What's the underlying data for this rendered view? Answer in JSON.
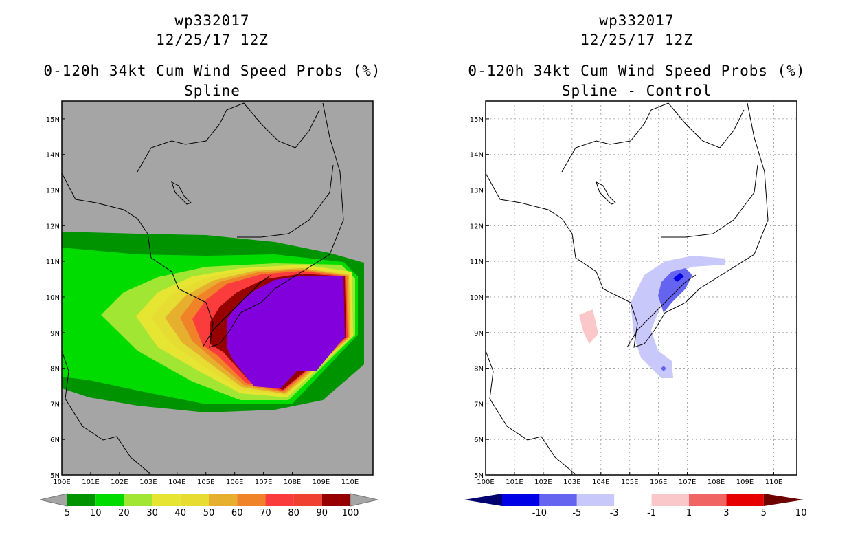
{
  "left_panel": {
    "storm_id": "wp332017",
    "datetime": "12/25/17 12Z",
    "title": "0-120h 34kt Cum Wind Speed Probs (%)",
    "subtitle": "Spline",
    "colorbar": {
      "labels": [
        "5",
        "10",
        "20",
        "30",
        "40",
        "50",
        "60",
        "70",
        "80",
        "90",
        "100"
      ],
      "colors": [
        "#009300",
        "#00dc00",
        "#a0e632",
        "#e6e632",
        "#e6dc32",
        "#e6af2d",
        "#f08228",
        "#fa3c3c",
        "#f04030",
        "#960000",
        "#8200dc"
      ]
    }
  },
  "right_panel": {
    "storm_id": "wp332017",
    "datetime": "12/25/17 12Z",
    "title": "0-120h 34kt Cum Wind Speed Probs (%)",
    "subtitle": "Spline - Control",
    "colorbar": {
      "labels": [
        "-10",
        "-5",
        "-3",
        "-1",
        "1",
        "3",
        "5",
        "10"
      ],
      "colors": [
        "#00006e",
        "#0000e6",
        "#6464f0",
        "#c8c8fa",
        "#ffffff",
        "#fac8c8",
        "#f06464",
        "#e60000",
        "#6e0000"
      ]
    }
  },
  "axes": {
    "lon_labels": [
      "100E",
      "101E",
      "102E",
      "103E",
      "104E",
      "105E",
      "106E",
      "107E",
      "108E",
      "109E",
      "110E"
    ],
    "lat_labels": [
      "5N",
      "6N",
      "7N",
      "8N",
      "9N",
      "10N",
      "11N",
      "12N",
      "13N",
      "14N",
      "15N"
    ],
    "lon_range": [
      100,
      110.8
    ],
    "lat_range": [
      5,
      15.5
    ]
  },
  "chart_data": [
    {
      "type": "heatmap",
      "title": "0-120h 34kt Cum Wind Speed Probs (%)",
      "subtitle": "Spline",
      "field": "cumulative 34kt wind speed probability",
      "units": "%",
      "levels": [
        5,
        10,
        20,
        30,
        40,
        50,
        60,
        70,
        80,
        90,
        100
      ],
      "max_region_center": {
        "lon": 108.0,
        "lat": 9.5,
        "value": 100
      }
    },
    {
      "type": "heatmap",
      "title": "0-120h 34kt Cum Wind Speed Probs (%)",
      "subtitle": "Spline - Control",
      "field": "probability difference",
      "units": "%",
      "levels": [
        -10,
        -5,
        -3,
        -1,
        1,
        3,
        5,
        10
      ],
      "min_region_center": {
        "lon": 106.2,
        "lat": 10.3,
        "value": -10
      },
      "positive_region_center": {
        "lon": 103.3,
        "lat": 9.2,
        "value": 1
      }
    }
  ]
}
